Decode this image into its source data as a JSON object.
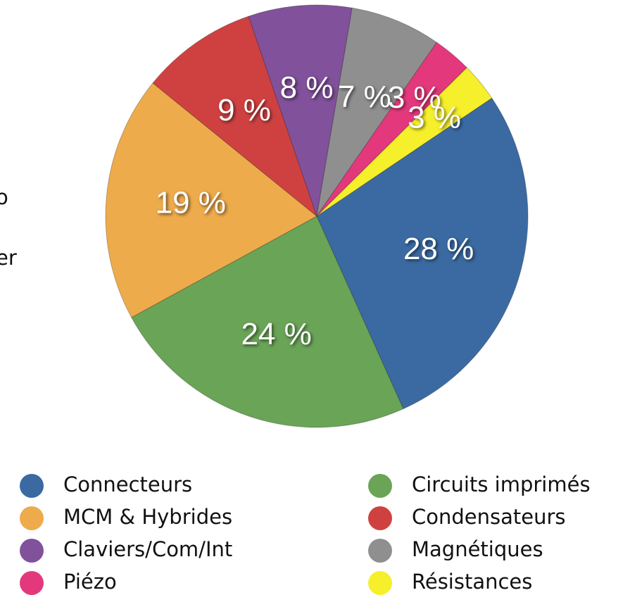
{
  "chart_data": {
    "type": "pie",
    "categories": [
      "Connecteurs",
      "Circuits imprimés",
      "MCM & Hybrides",
      "Condensateurs",
      "Claviers/Com/Int",
      "Magnétiques",
      "Piézo",
      "Résistances"
    ],
    "values": [
      28,
      24,
      19,
      9,
      8,
      7,
      3,
      3
    ],
    "value_labels": [
      "28 %",
      "24 %",
      "19 %",
      "9 %",
      "8 %",
      "7 %",
      "3 %",
      "3 %"
    ],
    "colors": [
      "#3b6aa2",
      "#6aa457",
      "#eeab4c",
      "#cf4141",
      "#81519b",
      "#8f8f8f",
      "#e3397c",
      "#f6ef2b"
    ],
    "legend": "bottom"
  },
  "clipped_text": [
    "o",
    "er"
  ]
}
